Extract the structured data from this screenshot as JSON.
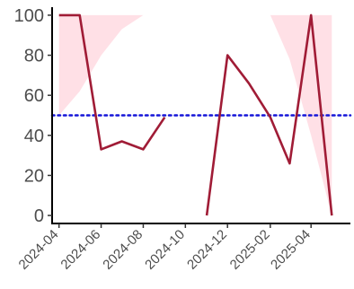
{
  "chart_data": {
    "type": "line",
    "title": "",
    "xlabel": "",
    "ylabel": "",
    "x": [
      "2024-04",
      "2024-05",
      "2024-06",
      "2024-07",
      "2024-08",
      "2024-09",
      "2024-10",
      "2024-11",
      "2024-12",
      "2025-01",
      "2025-02",
      "2025-03",
      "2025-04",
      "2025-05"
    ],
    "series": [
      {
        "values": [
          100,
          100,
          33,
          37,
          33,
          49,
          null,
          0,
          80,
          66,
          49,
          26,
          100,
          0
        ],
        "color": "#a01c36"
      }
    ],
    "reference_line": {
      "value": 50,
      "color": "#1515d8",
      "style": "dotted"
    },
    "ribbons": [
      {
        "x": [
          "2024-04",
          "2024-05",
          "2024-06",
          "2024-07",
          "2024-08"
        ],
        "lower": [
          50,
          62,
          80,
          93,
          100
        ],
        "upper": [
          100,
          100,
          100,
          100,
          100
        ],
        "color": "#ffe0e6"
      },
      {
        "x": [
          "2025-02",
          "2025-03",
          "2025-04",
          "2025-05"
        ],
        "lower": [
          100,
          78,
          40,
          0
        ],
        "upper": [
          100,
          100,
          100,
          100
        ],
        "color": "#ffe0e6"
      }
    ],
    "xticks": [
      "2024-04",
      "2024-06",
      "2024-08",
      "2024-10",
      "2024-12",
      "2025-02",
      "2025-04"
    ],
    "yticks": [
      0,
      20,
      40,
      60,
      80,
      100
    ],
    "ylim": [
      -4,
      104
    ],
    "xlim": [
      "2024-03-22",
      "2025-05-28"
    ],
    "grid": false,
    "legend": "none"
  }
}
